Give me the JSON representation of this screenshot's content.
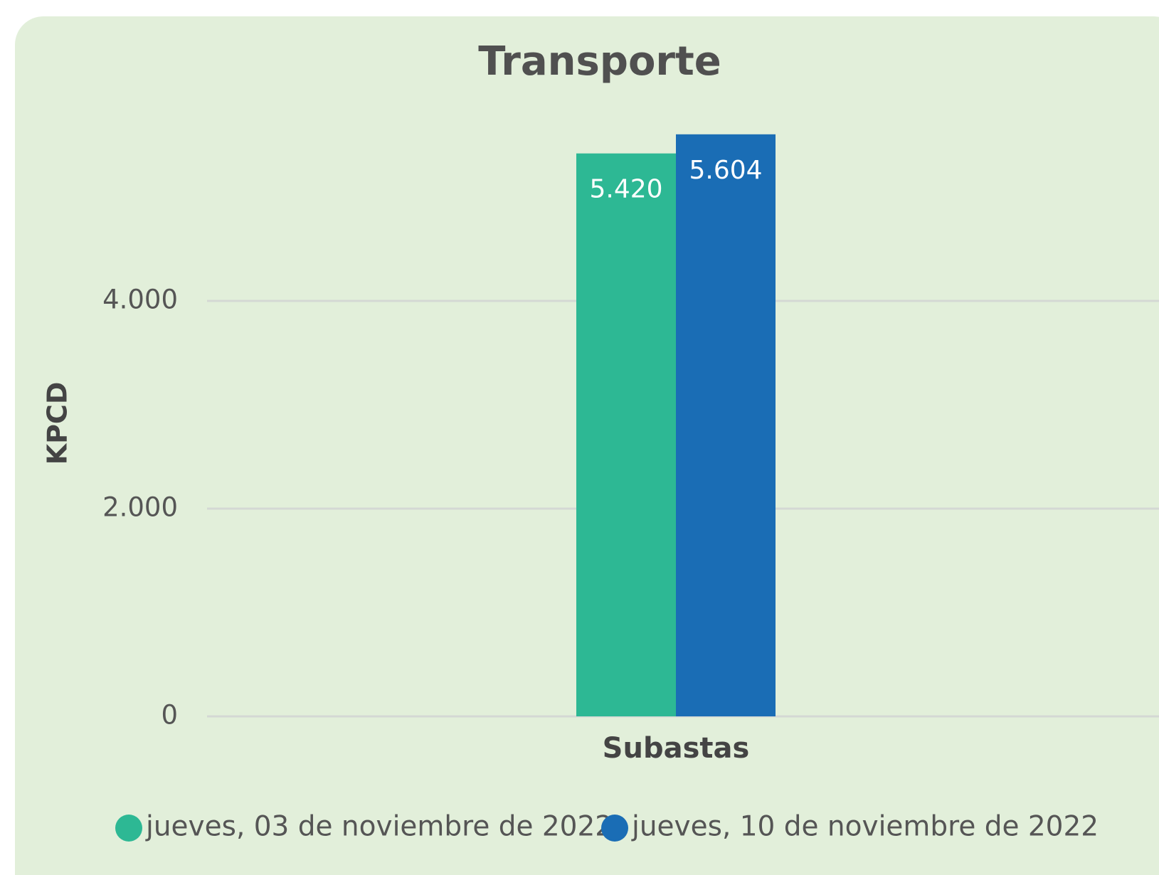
{
  "chart_data": {
    "type": "bar",
    "title": "Transporte",
    "y_label": "KPCD",
    "categories": [
      "Subastas"
    ],
    "series": [
      {
        "name": "jueves, 03 de noviembre de 2022",
        "color": "#2db894",
        "values": [
          5420
        ],
        "value_labels": [
          "5.420"
        ]
      },
      {
        "name": "jueves, 10 de noviembre de 2022",
        "color": "#1a6db5",
        "values": [
          5604
        ],
        "value_labels": [
          "5.604"
        ]
      }
    ],
    "ylim": [
      0,
      6000
    ],
    "yticks": [
      0,
      {
        "value": 2000,
        "label": "2.000"
      },
      {
        "value": 4000,
        "label": "4.000"
      }
    ],
    "grid": true,
    "legend": "bottom"
  }
}
